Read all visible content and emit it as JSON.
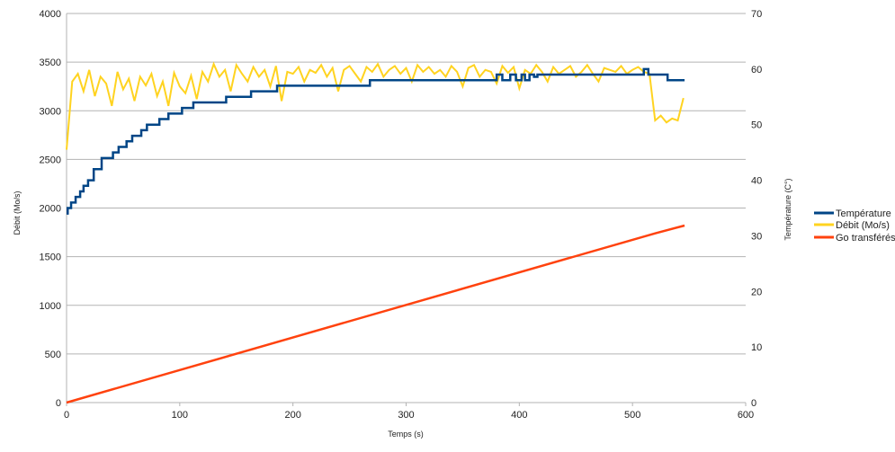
{
  "chart_data": {
    "type": "line",
    "title": "",
    "xlabel": "Temps (s)",
    "ylabel": "Débit (Mo/s)",
    "ylabel_right": "Température (C°)",
    "xlim": [
      0,
      600
    ],
    "ylim": [
      0,
      4000
    ],
    "ylim_right": [
      0,
      70
    ],
    "x_ticks": [
      "0",
      "100",
      "200",
      "300",
      "400",
      "500",
      "600"
    ],
    "y_ticks": [
      "0",
      "500",
      "1000",
      "1500",
      "2000",
      "2500",
      "3000",
      "3500",
      "4000"
    ],
    "y_ticks_right": [
      "0",
      "10",
      "20",
      "30",
      "40",
      "50",
      "60",
      "70"
    ],
    "grid": true,
    "legend_position": "right",
    "colors": {
      "temp": "#004586",
      "debit": "#ffd320",
      "go": "#ff420e",
      "grid": "#b3b3b3"
    },
    "series": [
      {
        "name": "Température",
        "axis": "right",
        "color": "#004586",
        "step": true,
        "points": [
          [
            0,
            34
          ],
          [
            1,
            35
          ],
          [
            4,
            36
          ],
          [
            8,
            37
          ],
          [
            12,
            38
          ],
          [
            15,
            39
          ],
          [
            19,
            40
          ],
          [
            24,
            42
          ],
          [
            31,
            44
          ],
          [
            41,
            45
          ],
          [
            46,
            46
          ],
          [
            53,
            47
          ],
          [
            58,
            48
          ],
          [
            66,
            49
          ],
          [
            71,
            50
          ],
          [
            82,
            51
          ],
          [
            90,
            52
          ],
          [
            102,
            53
          ],
          [
            112,
            54
          ],
          [
            141,
            55
          ],
          [
            163,
            56
          ],
          [
            186,
            57
          ],
          [
            208,
            57
          ],
          [
            268,
            58
          ],
          [
            380,
            59
          ],
          [
            385,
            58
          ],
          [
            392,
            59
          ],
          [
            397,
            58
          ],
          [
            402,
            59
          ],
          [
            405,
            58
          ],
          [
            409,
            59
          ],
          [
            413,
            58.6
          ],
          [
            416,
            59
          ],
          [
            510,
            60
          ],
          [
            514,
            59
          ],
          [
            531,
            58
          ],
          [
            546,
            58
          ]
        ]
      },
      {
        "name": "Débit (Mo/s)",
        "axis": "left",
        "color": "#ffd320",
        "x_start": 0,
        "x_step": 5,
        "values": [
          2600,
          3300,
          3380,
          3200,
          3420,
          3150,
          3350,
          3280,
          3050,
          3400,
          3220,
          3330,
          3100,
          3350,
          3260,
          3380,
          3150,
          3300,
          3050,
          3390,
          3250,
          3180,
          3360,
          3120,
          3400,
          3300,
          3480,
          3350,
          3420,
          3200,
          3470,
          3380,
          3300,
          3450,
          3350,
          3420,
          3250,
          3460,
          3100,
          3400,
          3380,
          3450,
          3300,
          3420,
          3390,
          3470,
          3350,
          3440,
          3200,
          3420,
          3460,
          3380,
          3300,
          3450,
          3400,
          3480,
          3350,
          3420,
          3460,
          3380,
          3440,
          3300,
          3470,
          3400,
          3450,
          3380,
          3420,
          3350,
          3460,
          3400,
          3250,
          3440,
          3470,
          3350,
          3420,
          3400,
          3280,
          3460,
          3390,
          3450,
          3230,
          3420,
          3380,
          3470,
          3400,
          3300,
          3450,
          3380,
          3420,
          3460,
          3350,
          3400,
          3470,
          3380,
          3300,
          3440,
          3420,
          3400,
          3460,
          3380,
          3420,
          3450,
          3400,
          3380,
          2900,
          2950,
          2880,
          2920,
          2900,
          3130
        ]
      },
      {
        "name": "Go transférés",
        "axis": "left",
        "color": "#ff420e",
        "points": [
          [
            0,
            0
          ],
          [
            520,
            1740
          ],
          [
            546,
            1820
          ]
        ]
      }
    ]
  }
}
